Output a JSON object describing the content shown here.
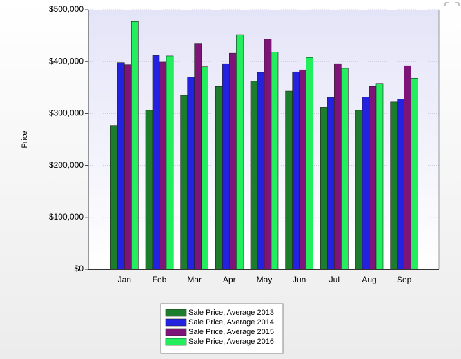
{
  "chart_data": {
    "type": "bar",
    "y_label": "Price",
    "categories": [
      "Jan",
      "Feb",
      "Mar",
      "Apr",
      "May",
      "Jun",
      "Jul",
      "Aug",
      "Sep"
    ],
    "series": [
      {
        "name": "Sale Price, Average 2013",
        "color": "#1c7d2c",
        "values": [
          277000,
          306000,
          335000,
          352000,
          362000,
          343000,
          312000,
          306000,
          322000
        ]
      },
      {
        "name": "Sale Price, Average 2014",
        "color": "#2222e0",
        "values": [
          398000,
          412000,
          370000,
          396000,
          379000,
          380000,
          331000,
          332000,
          328000
        ]
      },
      {
        "name": "Sale Price, Average 2015",
        "color": "#7e1478",
        "values": [
          394000,
          399000,
          434000,
          416000,
          443000,
          384000,
          396000,
          352000,
          392000
        ]
      },
      {
        "name": "Sale Price, Average 2016",
        "color": "#22ee5e",
        "values": [
          477000,
          411000,
          390000,
          452000,
          418000,
          408000,
          387000,
          358000,
          368000
        ]
      }
    ],
    "ylim": [
      0,
      500000
    ],
    "yticks": [
      {
        "value": 0,
        "label": "$0"
      },
      {
        "value": 100000,
        "label": "$100,000"
      },
      {
        "value": 200000,
        "label": "$200,000"
      },
      {
        "value": 300000,
        "label": "$300,000"
      },
      {
        "value": 400000,
        "label": "$400,000"
      },
      {
        "value": 500000,
        "label": "$500,000"
      }
    ],
    "grid": true
  }
}
